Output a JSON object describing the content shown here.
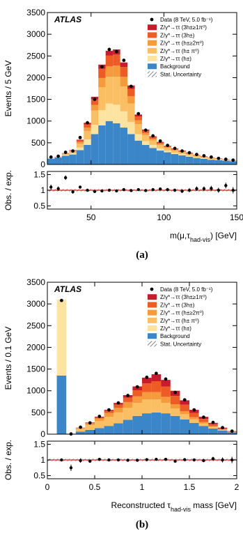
{
  "chart_data": [
    {
      "type": "histogram",
      "label": "ATLAS",
      "caption": "(a)",
      "ylabel": "Events / 5 GeV",
      "xlabel": [
        "m(μ,τ",
        "had-vis",
        ") [GeV]"
      ],
      "bins": [
        20,
        25,
        30,
        35,
        40,
        45,
        50,
        55,
        60,
        65,
        70,
        75,
        80,
        85,
        90,
        95,
        100,
        105,
        110,
        115,
        120,
        125,
        130,
        135,
        140,
        145,
        150
      ],
      "xlim": [
        20,
        150
      ],
      "xticks": [
        50,
        100,
        150
      ],
      "ylim": [
        0,
        3500
      ],
      "yticks": [
        0,
        500,
        1000,
        1500,
        2000,
        2500,
        3000,
        3500
      ],
      "series": [
        {
          "name": "Background",
          "color": "#3a86c8",
          "values": [
            130,
            160,
            200,
            230,
            330,
            450,
            700,
            900,
            1000,
            950,
            850,
            700,
            550,
            450,
            380,
            320,
            280,
            240,
            210,
            180,
            150,
            130,
            110,
            100,
            90,
            75
          ]
        },
        {
          "name": "Z/γ*→ττ (h±)",
          "color": "#fde3a0",
          "values": [
            5,
            5,
            15,
            25,
            60,
            128,
            215,
            350,
            405,
            425,
            375,
            280,
            150,
            88,
            68,
            50,
            38,
            33,
            28,
            23,
            18,
            15,
            13,
            10,
            8,
            6
          ]
        },
        {
          "name": "Z/γ*→ττ (h± π⁰)",
          "color": "#fbbf63",
          "values": [
            8,
            8,
            23,
            38,
            91,
            194,
            327,
            532,
            616,
            646,
            570,
            426,
            228,
            133,
            103,
            76,
            57,
            49,
            42,
            34,
            27,
            23,
            19,
            15,
            11,
            10
          ]
        },
        {
          "name": "Z/γ*→ττ (h±≥2π⁰)",
          "color": "#f59b3c",
          "values": [
            3,
            3,
            9,
            15,
            36,
            76,
            129,
            210,
            243,
            255,
            225,
            168,
            90,
            53,
            40,
            30,
            23,
            20,
            17,
            14,
            10,
            9,
            8,
            6,
            5,
            4
          ]
        },
        {
          "name": "Z/γ*→ττ (3h±)",
          "color": "#ee5b25",
          "values": [
            3,
            3,
            9,
            15,
            36,
            76,
            129,
            210,
            243,
            255,
            225,
            168,
            90,
            53,
            40,
            30,
            23,
            20,
            17,
            14,
            10,
            9,
            8,
            6,
            5,
            4
          ]
        },
        {
          "name": "Z/γ*→ττ (3h±≥1π⁰)",
          "color": "#c81b2c",
          "values": [
            1,
            1,
            4,
            7,
            17,
            36,
            60,
            98,
            113,
            119,
            105,
            78,
            42,
            25,
            19,
            14,
            10,
            9,
            8,
            6,
            5,
            4,
            3,
            3,
            2,
            1
          ]
        }
      ],
      "data": {
        "name": "Data (8 TeV, 5.0 fb⁻¹)",
        "values": [
          170,
          190,
          280,
          310,
          620,
          960,
          1500,
          2250,
          2650,
          2600,
          2400,
          1800,
          1170,
          790,
          660,
          540,
          440,
          370,
          310,
          270,
          230,
          200,
          170,
          140,
          120,
          100
        ]
      },
      "uncertainty": "Stat. Uncertainty",
      "ratio": {
        "ylabel": "Obs. / exp.",
        "ylim": [
          0.4,
          1.6
        ],
        "yticks": [
          0.5,
          1,
          1.5
        ],
        "reference": 1,
        "band": 0.04,
        "values": [
          1.1,
          1.05,
          1.4,
          0.95,
          1.1,
          1.0,
          0.96,
          0.98,
          1.0,
          0.98,
          1.02,
          0.99,
          1.02,
          0.99,
          1.02,
          1.04,
          1.02,
          1.0,
          0.97,
          1.0,
          1.05,
          1.05,
          1.06,
          1.0,
          1.15,
          1.0
        ],
        "errors": [
          0.08,
          0.07,
          0.07,
          0.06,
          0.04,
          0.03,
          0.03,
          0.02,
          0.02,
          0.02,
          0.02,
          0.02,
          0.03,
          0.04,
          0.04,
          0.04,
          0.05,
          0.05,
          0.06,
          0.06,
          0.07,
          0.07,
          0.08,
          0.08,
          0.09,
          0.1
        ]
      }
    },
    {
      "type": "histogram",
      "label": "ATLAS",
      "caption": "(b)",
      "ylabel": "Events / 0.1 GeV",
      "xlabel": [
        "Reconstructed τ",
        "had-vis",
        " mass [GeV]"
      ],
      "bins": [
        0.1,
        0.2,
        0.3,
        0.4,
        0.5,
        0.6,
        0.7,
        0.8,
        0.9,
        1.0,
        1.1,
        1.2,
        1.3,
        1.4,
        1.5,
        1.6,
        1.7,
        1.8,
        1.9,
        2.0
      ],
      "xlim": [
        0,
        2
      ],
      "xticks": [
        0,
        0.5,
        1,
        1.5,
        2
      ],
      "ylim": [
        0,
        3500
      ],
      "yticks": [
        0,
        500,
        1000,
        1500,
        2000,
        2500,
        3000,
        3500
      ],
      "series": [
        {
          "name": "Background",
          "color": "#3a86c8",
          "values": [
            1350,
            10,
            60,
            100,
            140,
            190,
            250,
            330,
            420,
            480,
            500,
            480,
            420,
            340,
            260,
            190,
            130,
            80,
            40
          ]
        },
        {
          "name": "Z/γ*→ττ (h±)",
          "color": "#fde3a0",
          "values": [
            1750,
            0,
            0,
            0,
            0,
            0,
            0,
            0,
            0,
            0,
            0,
            0,
            0,
            0,
            0,
            0,
            0,
            0,
            0
          ]
        },
        {
          "name": "Z/γ*→ττ (h± π⁰)",
          "color": "#fbbf63",
          "values": [
            0,
            0,
            60,
            110,
            160,
            210,
            250,
            280,
            300,
            320,
            300,
            240,
            170,
            120,
            80,
            55,
            35,
            20,
            8
          ]
        },
        {
          "name": "Z/γ*→ττ (h±≥2π⁰)",
          "color": "#f59b3c",
          "values": [
            0,
            0,
            20,
            40,
            60,
            90,
            110,
            130,
            150,
            170,
            170,
            140,
            100,
            70,
            50,
            35,
            20,
            10,
            5
          ]
        },
        {
          "name": "Z/γ*→ττ (3h±)",
          "color": "#ee5b25",
          "values": [
            0,
            0,
            5,
            10,
            25,
            45,
            70,
            100,
            140,
            200,
            250,
            240,
            190,
            150,
            100,
            70,
            45,
            25,
            10
          ]
        },
        {
          "name": "Z/γ*→ττ (3h±≥1π⁰)",
          "color": "#c81b2c",
          "values": [
            0,
            0,
            5,
            10,
            15,
            25,
            40,
            60,
            90,
            130,
            160,
            150,
            120,
            100,
            70,
            50,
            30,
            15,
            7
          ]
        }
      ],
      "data": {
        "name": "Data (8 TeV, 5.0 fb⁻¹)",
        "values": [
          3080,
          5,
          160,
          260,
          410,
          560,
          720,
          890,
          1090,
          1310,
          1400,
          1270,
          960,
          790,
          560,
          390,
          270,
          150,
          70
        ]
      },
      "uncertainty": "Stat. Uncertainty",
      "ratio": {
        "ylabel": "Obs. / exp.",
        "ylim": [
          0.4,
          1.6
        ],
        "yticks": [
          0.5,
          1,
          1.5
        ],
        "reference": 1,
        "band": 0.04,
        "values": [
          1.0,
          0.75,
          0.98,
          0.96,
          1.02,
          1.0,
          1.0,
          0.99,
          0.99,
          1.01,
          1.02,
          1.02,
          0.96,
          1.01,
          1.0,
          0.98,
          1.04,
          1.0,
          1.0
        ],
        "errors": [
          0.02,
          0.1,
          0.07,
          0.05,
          0.04,
          0.04,
          0.03,
          0.03,
          0.03,
          0.03,
          0.03,
          0.03,
          0.03,
          0.04,
          0.04,
          0.05,
          0.06,
          0.08,
          0.1
        ]
      }
    }
  ]
}
